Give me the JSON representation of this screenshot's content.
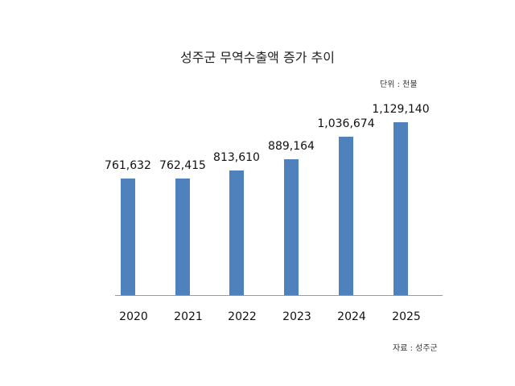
{
  "title": "성주군 무역수출액 증가 추이",
  "unit_label": "단위 : 천불",
  "source_label": "자료 : 성주군",
  "bar_color": "#4f81bd",
  "chart_data": {
    "type": "bar",
    "title": "성주군 무역수출액 증가 추이",
    "xlabel": "",
    "ylabel": "",
    "unit": "천불",
    "source": "성주군",
    "categories": [
      "2020",
      "2021",
      "2022",
      "2023",
      "2024",
      "2025"
    ],
    "values": [
      761632,
      762415,
      813610,
      889164,
      1036674,
      1129140
    ],
    "value_labels": [
      "761,632",
      "762,415",
      "813,610",
      "889,164",
      "1,036,674",
      "1,129,140"
    ],
    "grid": false,
    "legend": "none",
    "y_axis_visible": false
  }
}
